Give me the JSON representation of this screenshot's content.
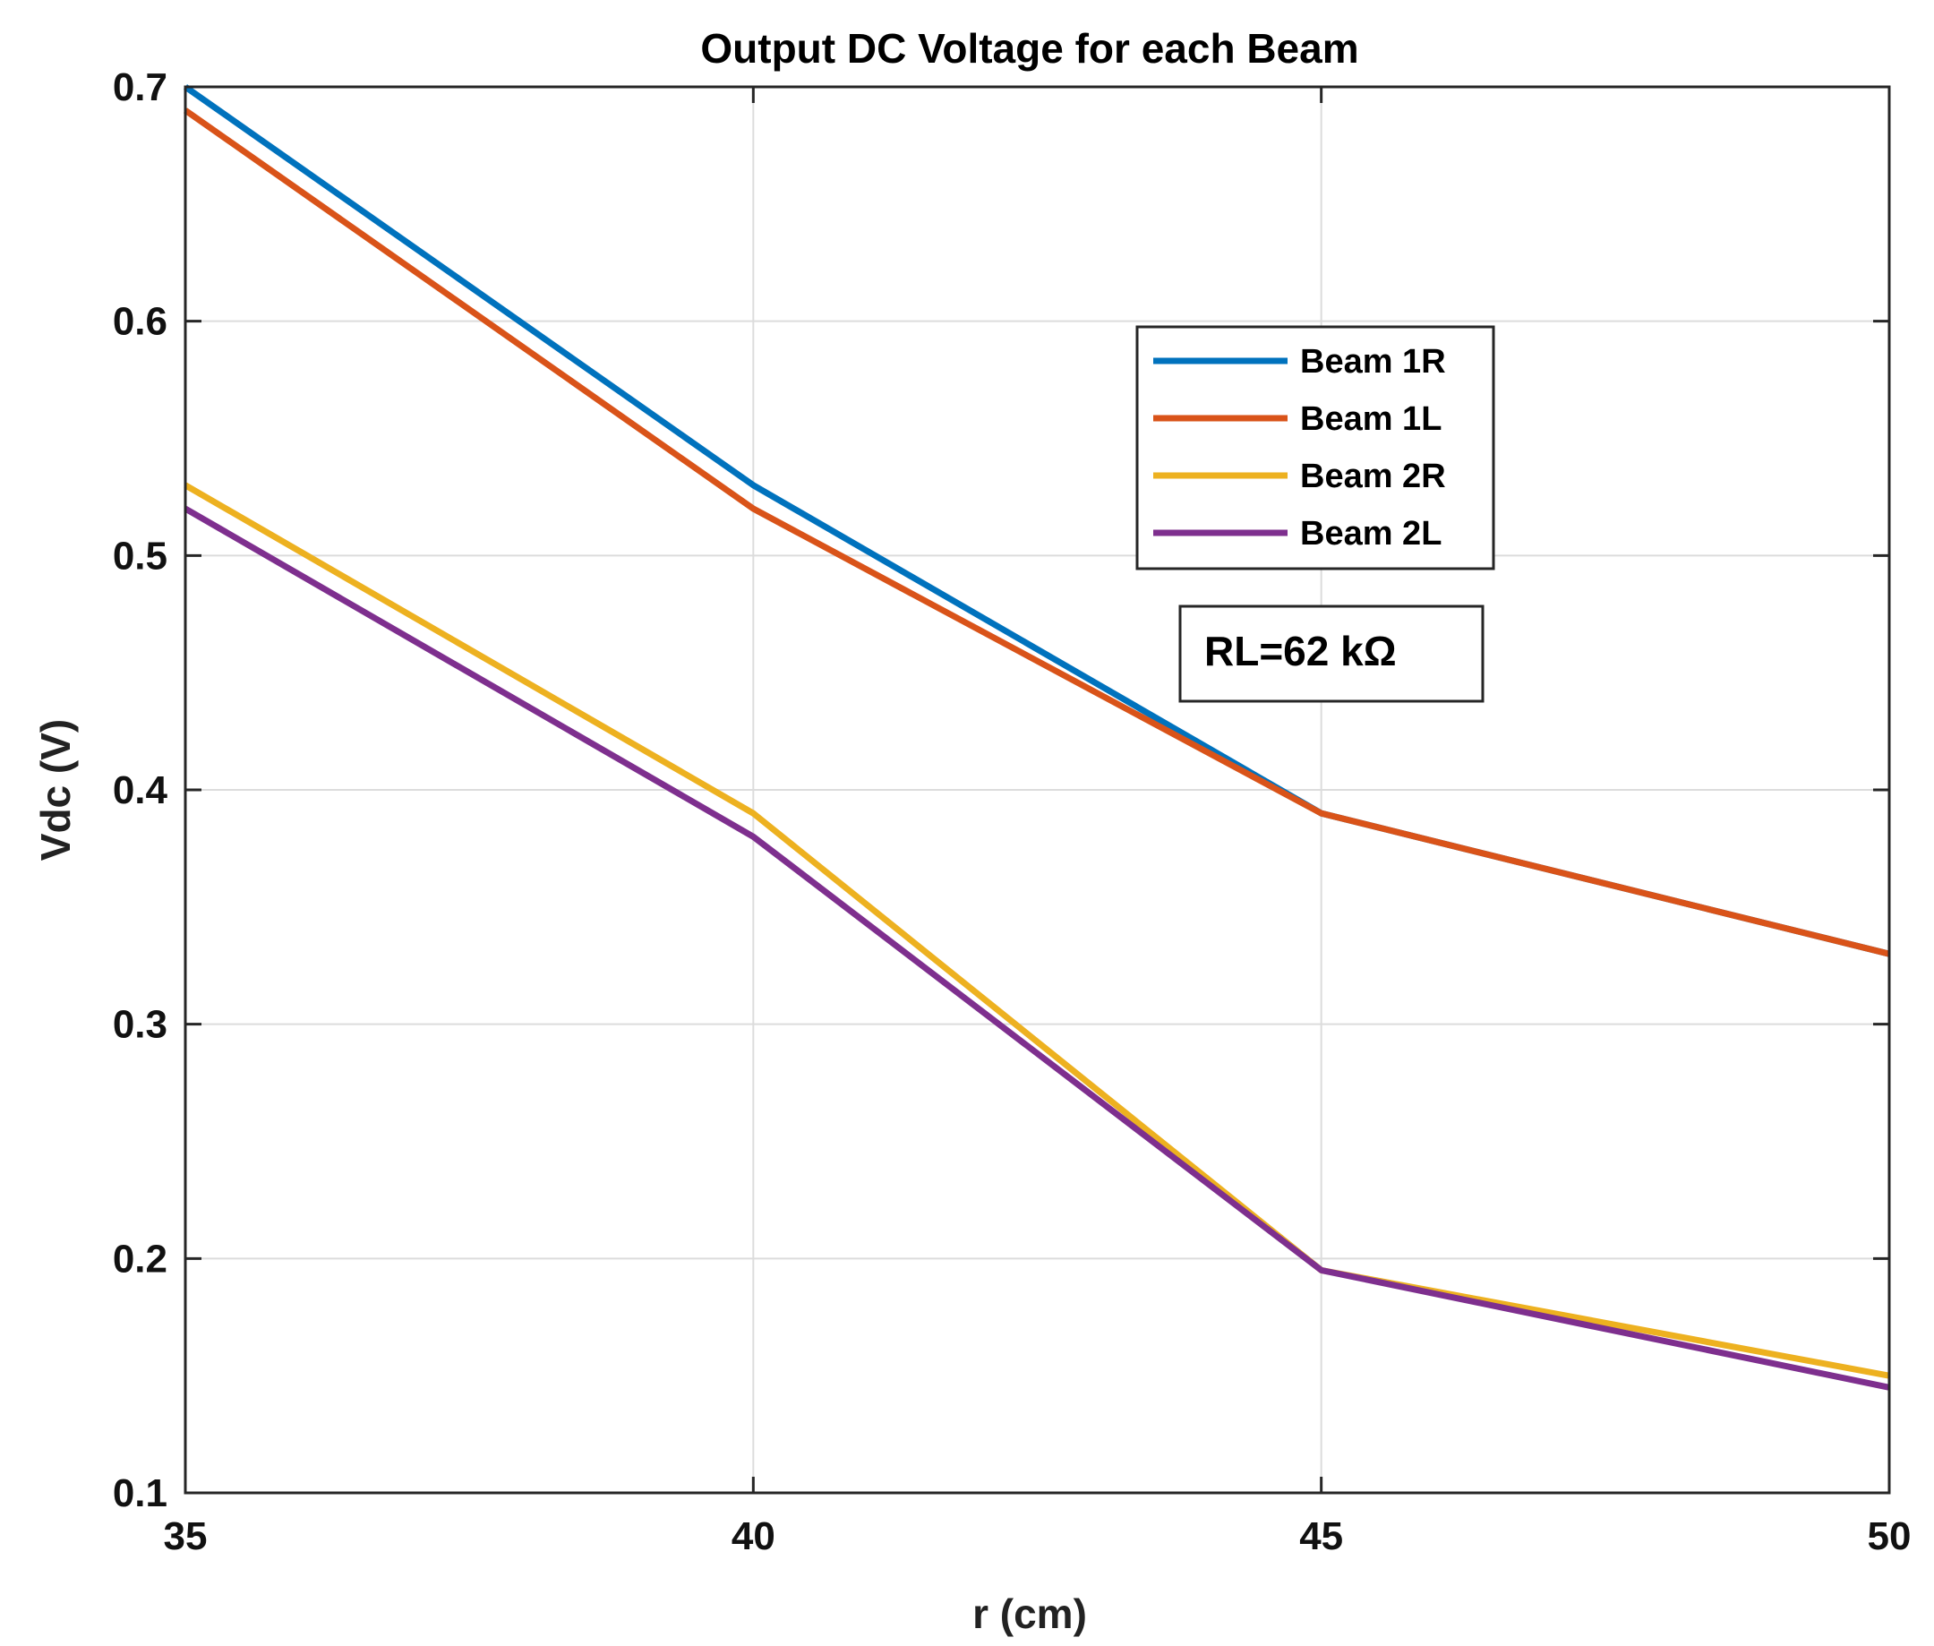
{
  "chart_data": {
    "type": "line",
    "title": "Output DC Voltage for each Beam",
    "xlabel": "r (cm)",
    "ylabel": "Vdc (V)",
    "x": [
      35,
      40,
      45,
      50
    ],
    "xlim": [
      35,
      50
    ],
    "ylim": [
      0.1,
      0.7
    ],
    "xticks": [
      "35",
      "40",
      "45",
      "50"
    ],
    "yticks": [
      "0.1",
      "0.2",
      "0.3",
      "0.4",
      "0.5",
      "0.6",
      "0.7"
    ],
    "grid": true,
    "legend_position": "upper-right-center",
    "series": [
      {
        "name": "Beam 1R",
        "color": "#0072BD",
        "values": [
          0.7,
          0.53,
          0.39,
          0.33
        ]
      },
      {
        "name": "Beam 1L",
        "color": "#D95319",
        "values": [
          0.69,
          0.52,
          0.39,
          0.33
        ]
      },
      {
        "name": "Beam 2R",
        "color": "#EDB120",
        "values": [
          0.53,
          0.39,
          0.195,
          0.15
        ]
      },
      {
        "name": "Beam 2L",
        "color": "#7E2F8E",
        "values": [
          0.52,
          0.38,
          0.195,
          0.145
        ]
      }
    ],
    "annotation": "RL=62 kΩ"
  }
}
